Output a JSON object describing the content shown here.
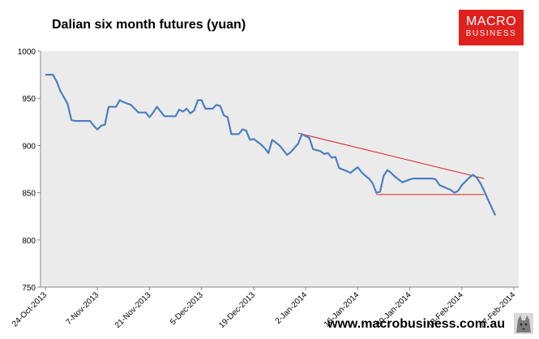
{
  "title": "Dalian six month futures (yuan)",
  "logo": {
    "line1": "MACRO",
    "line2": "BUSINESS"
  },
  "footer_url": "www.macrobusiness.com.au",
  "colors": {
    "series": "#4a7fc1",
    "trend": "#e02020",
    "plot_bg": "#ebebeb",
    "logo_bg": "#e0201c"
  },
  "chart_data": {
    "type": "line",
    "title": "Dalian six month futures (yuan)",
    "xlabel": "",
    "ylabel": "",
    "ylim": [
      750,
      1000
    ],
    "yticks": [
      750,
      800,
      850,
      900,
      950,
      1000
    ],
    "xticks": [
      "24-Oct-2013",
      "7-Nov-2013",
      "21-Nov-2013",
      "5-Dec-2013",
      "19-Dec-2013",
      "2-Jan-2014",
      "16-Jan-2014",
      "30-Jan-2014",
      "13-Feb-2014",
      "27-Feb-2014"
    ],
    "xrange": [
      "2013-10-24",
      "2014-02-27"
    ],
    "grid": false,
    "series": [
      {
        "name": "",
        "points": [
          [
            "2013-10-24",
            975
          ],
          [
            "2013-10-26",
            975
          ],
          [
            "2013-10-27",
            968
          ],
          [
            "2013-10-28",
            958
          ],
          [
            "2013-10-30",
            944
          ],
          [
            "2013-10-31",
            927
          ],
          [
            "2013-11-01",
            926
          ],
          [
            "2013-11-05",
            926
          ],
          [
            "2013-11-06",
            921
          ],
          [
            "2013-11-07",
            917
          ],
          [
            "2013-11-08",
            921
          ],
          [
            "2013-11-09",
            922
          ],
          [
            "2013-11-10",
            941
          ],
          [
            "2013-11-12",
            941
          ],
          [
            "2013-11-13",
            948
          ],
          [
            "2013-11-14",
            946
          ],
          [
            "2013-11-16",
            943
          ],
          [
            "2013-11-18",
            935
          ],
          [
            "2013-11-20",
            935
          ],
          [
            "2013-11-21",
            930
          ],
          [
            "2013-11-22",
            935
          ],
          [
            "2013-11-23",
            941
          ],
          [
            "2013-11-25",
            931
          ],
          [
            "2013-11-27",
            931
          ],
          [
            "2013-11-28",
            931
          ],
          [
            "2013-11-29",
            938
          ],
          [
            "2013-11-30",
            936
          ],
          [
            "2013-12-01",
            939
          ],
          [
            "2013-12-02",
            934
          ],
          [
            "2013-12-03",
            937
          ],
          [
            "2013-12-04",
            948
          ],
          [
            "2013-12-05",
            948
          ],
          [
            "2013-12-06",
            939
          ],
          [
            "2013-12-08",
            939
          ],
          [
            "2013-12-09",
            943
          ],
          [
            "2013-12-10",
            942
          ],
          [
            "2013-12-11",
            932
          ],
          [
            "2013-12-12",
            930
          ],
          [
            "2013-12-13",
            912
          ],
          [
            "2013-12-15",
            912
          ],
          [
            "2013-12-16",
            917
          ],
          [
            "2013-12-17",
            916
          ],
          [
            "2013-12-18",
            906
          ],
          [
            "2013-12-19",
            907
          ],
          [
            "2013-12-21",
            901
          ],
          [
            "2013-12-22",
            897
          ],
          [
            "2013-12-23",
            892
          ],
          [
            "2013-12-24",
            906
          ],
          [
            "2013-12-26",
            900
          ],
          [
            "2013-12-28",
            890
          ],
          [
            "2013-12-29",
            893
          ],
          [
            "2013-12-31",
            902
          ],
          [
            "2014-01-01",
            912
          ],
          [
            "2014-01-02",
            910
          ],
          [
            "2014-01-03",
            908
          ],
          [
            "2014-01-04",
            896
          ],
          [
            "2014-01-06",
            894
          ],
          [
            "2014-01-07",
            891
          ],
          [
            "2014-01-08",
            892
          ],
          [
            "2014-01-09",
            887
          ],
          [
            "2014-01-10",
            888
          ],
          [
            "2014-01-11",
            876
          ],
          [
            "2014-01-13",
            873
          ],
          [
            "2014-01-14",
            871
          ],
          [
            "2014-01-15",
            874
          ],
          [
            "2014-01-16",
            877
          ],
          [
            "2014-01-17",
            872
          ],
          [
            "2014-01-18",
            868
          ],
          [
            "2014-01-19",
            865
          ],
          [
            "2014-01-20",
            860
          ],
          [
            "2014-01-21",
            850
          ],
          [
            "2014-01-22",
            851
          ],
          [
            "2014-01-23",
            868
          ],
          [
            "2014-01-24",
            874
          ],
          [
            "2014-01-25",
            871
          ],
          [
            "2014-01-26",
            867
          ],
          [
            "2014-01-28",
            861
          ],
          [
            "2014-01-30",
            864
          ],
          [
            "2014-01-31",
            865
          ],
          [
            "2014-02-05",
            865
          ],
          [
            "2014-02-06",
            864
          ],
          [
            "2014-02-07",
            858
          ],
          [
            "2014-02-10",
            853
          ],
          [
            "2014-02-11",
            850
          ],
          [
            "2014-02-12",
            852
          ],
          [
            "2014-02-13",
            858
          ],
          [
            "2014-02-14",
            862
          ],
          [
            "2014-02-15",
            866
          ],
          [
            "2014-02-16",
            869
          ],
          [
            "2014-02-17",
            866
          ],
          [
            "2014-02-18",
            860
          ],
          [
            "2014-02-19",
            852
          ],
          [
            "2014-02-20",
            843
          ],
          [
            "2014-02-22",
            826
          ]
        ]
      }
    ],
    "trend_lines": [
      {
        "from": [
          "2013-12-31",
          913
        ],
        "to": [
          "2014-02-19",
          865
        ]
      },
      {
        "from": [
          "2014-01-21",
          848
        ],
        "to": [
          "2014-02-19",
          848
        ]
      }
    ]
  }
}
